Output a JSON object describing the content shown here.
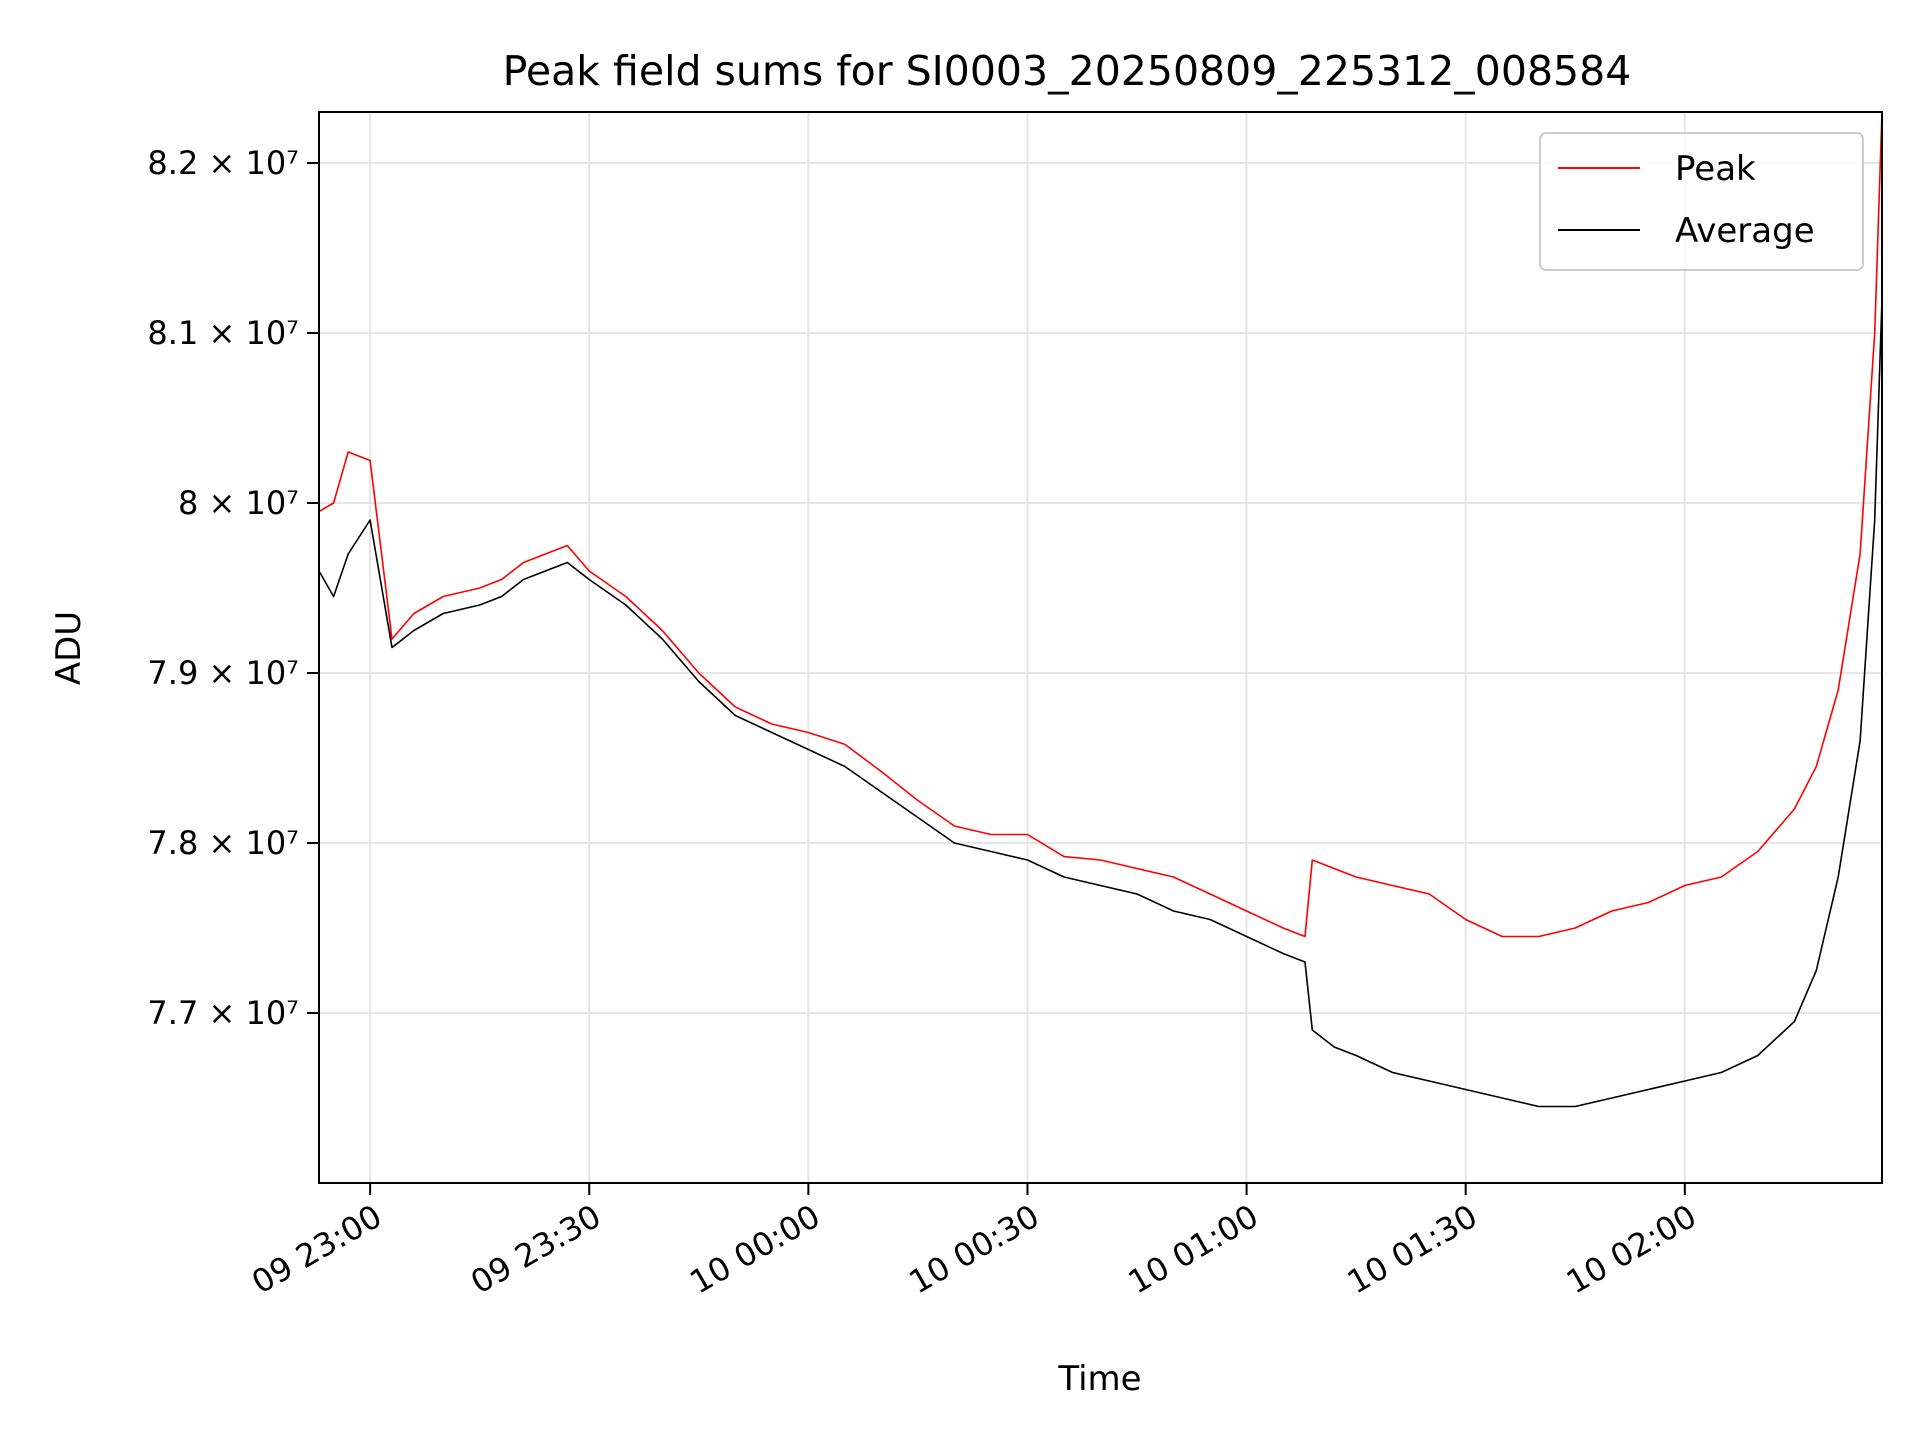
{
  "chart_data": {
    "type": "line",
    "title": "Peak field sums for SI0003_20250809_225312_008584",
    "xlabel": "Time",
    "ylabel": "ADU",
    "xlim": [
      "2025-08-09 22:53:00",
      "2025-08-10 02:27:00"
    ],
    "ylim": [
      76000000,
      82300000
    ],
    "x_ticks": [
      {
        "label": "09 23:00",
        "t": "2025-08-09 23:00:00"
      },
      {
        "label": "09 23:30",
        "t": "2025-08-09 23:30:00"
      },
      {
        "label": "10 00:00",
        "t": "2025-08-10 00:00:00"
      },
      {
        "label": "10 00:30",
        "t": "2025-08-10 00:30:00"
      },
      {
        "label": "10 01:00",
        "t": "2025-08-10 01:00:00"
      },
      {
        "label": "10 01:30",
        "t": "2025-08-10 01:30:00"
      },
      {
        "label": "10 02:00",
        "t": "2025-08-10 02:00:00"
      }
    ],
    "y_ticks": [
      {
        "label": "7.7 × 10⁷",
        "value": 77000000
      },
      {
        "label": "7.8 × 10⁷",
        "value": 78000000
      },
      {
        "label": "7.9 × 10⁷",
        "value": 79000000
      },
      {
        "label": "8 × 10⁷",
        "value": 80000000
      },
      {
        "label": "8.1 × 10⁷",
        "value": 81000000
      },
      {
        "label": "8.2 × 10⁷",
        "value": 82000000
      }
    ],
    "grid": true,
    "legend_position": "top-right",
    "series": [
      {
        "name": "Peak",
        "color": "#ff0000",
        "x": [
          "2025-08-09 22:53:00",
          "2025-08-09 22:55:00",
          "2025-08-09 22:57:00",
          "2025-08-09 23:00:00",
          "2025-08-09 23:03:00",
          "2025-08-09 23:06:00",
          "2025-08-09 23:10:00",
          "2025-08-09 23:15:00",
          "2025-08-09 23:18:00",
          "2025-08-09 23:21:00",
          "2025-08-09 23:24:00",
          "2025-08-09 23:27:00",
          "2025-08-09 23:30:00",
          "2025-08-09 23:35:00",
          "2025-08-09 23:40:00",
          "2025-08-09 23:45:00",
          "2025-08-09 23:50:00",
          "2025-08-09 23:55:00",
          "2025-08-10 00:00:00",
          "2025-08-10 00:05:00",
          "2025-08-10 00:10:00",
          "2025-08-10 00:15:00",
          "2025-08-10 00:20:00",
          "2025-08-10 00:25:00",
          "2025-08-10 00:30:00",
          "2025-08-10 00:35:00",
          "2025-08-10 00:40:00",
          "2025-08-10 00:45:00",
          "2025-08-10 00:50:00",
          "2025-08-10 00:55:00",
          "2025-08-10 01:00:00",
          "2025-08-10 01:05:00",
          "2025-08-10 01:08:00",
          "2025-08-10 01:09:00",
          "2025-08-10 01:12:00",
          "2025-08-10 01:15:00",
          "2025-08-10 01:20:00",
          "2025-08-10 01:25:00",
          "2025-08-10 01:30:00",
          "2025-08-10 01:35:00",
          "2025-08-10 01:40:00",
          "2025-08-10 01:45:00",
          "2025-08-10 01:50:00",
          "2025-08-10 01:55:00",
          "2025-08-10 02:00:00",
          "2025-08-10 02:05:00",
          "2025-08-10 02:10:00",
          "2025-08-10 02:15:00",
          "2025-08-10 02:18:00",
          "2025-08-10 02:21:00",
          "2025-08-10 02:24:00",
          "2025-08-10 02:26:00",
          "2025-08-10 02:27:00"
        ],
        "y": [
          79950000,
          80000000,
          80300000,
          80250000,
          79200000,
          79350000,
          79450000,
          79500000,
          79550000,
          79650000,
          79700000,
          79750000,
          79600000,
          79450000,
          79250000,
          79000000,
          78800000,
          78700000,
          78650000,
          78580000,
          78420000,
          78250000,
          78100000,
          78050000,
          78050000,
          77920000,
          77900000,
          77850000,
          77800000,
          77700000,
          77600000,
          77500000,
          77450000,
          77900000,
          77850000,
          77800000,
          77750000,
          77700000,
          77550000,
          77450000,
          77450000,
          77500000,
          77600000,
          77650000,
          77750000,
          77800000,
          77950000,
          78200000,
          78450000,
          78900000,
          79700000,
          81000000,
          82300000
        ]
      },
      {
        "name": "Average",
        "color": "#000000",
        "x": [
          "2025-08-09 22:53:00",
          "2025-08-09 22:55:00",
          "2025-08-09 22:57:00",
          "2025-08-09 23:00:00",
          "2025-08-09 23:03:00",
          "2025-08-09 23:06:00",
          "2025-08-09 23:10:00",
          "2025-08-09 23:15:00",
          "2025-08-09 23:18:00",
          "2025-08-09 23:21:00",
          "2025-08-09 23:24:00",
          "2025-08-09 23:27:00",
          "2025-08-09 23:30:00",
          "2025-08-09 23:35:00",
          "2025-08-09 23:40:00",
          "2025-08-09 23:45:00",
          "2025-08-09 23:50:00",
          "2025-08-09 23:55:00",
          "2025-08-10 00:00:00",
          "2025-08-10 00:05:00",
          "2025-08-10 00:10:00",
          "2025-08-10 00:15:00",
          "2025-08-10 00:20:00",
          "2025-08-10 00:25:00",
          "2025-08-10 00:30:00",
          "2025-08-10 00:35:00",
          "2025-08-10 00:40:00",
          "2025-08-10 00:45:00",
          "2025-08-10 00:50:00",
          "2025-08-10 00:55:00",
          "2025-08-10 01:00:00",
          "2025-08-10 01:05:00",
          "2025-08-10 01:08:00",
          "2025-08-10 01:09:00",
          "2025-08-10 01:12:00",
          "2025-08-10 01:15:00",
          "2025-08-10 01:20:00",
          "2025-08-10 01:25:00",
          "2025-08-10 01:30:00",
          "2025-08-10 01:35:00",
          "2025-08-10 01:40:00",
          "2025-08-10 01:45:00",
          "2025-08-10 01:50:00",
          "2025-08-10 01:55:00",
          "2025-08-10 02:00:00",
          "2025-08-10 02:05:00",
          "2025-08-10 02:10:00",
          "2025-08-10 02:15:00",
          "2025-08-10 02:18:00",
          "2025-08-10 02:21:00",
          "2025-08-10 02:24:00",
          "2025-08-10 02:26:00",
          "2025-08-10 02:27:00"
        ],
        "y": [
          79600000,
          79450000,
          79700000,
          79900000,
          79150000,
          79250000,
          79350000,
          79400000,
          79450000,
          79550000,
          79600000,
          79650000,
          79550000,
          79400000,
          79200000,
          78950000,
          78750000,
          78650000,
          78550000,
          78450000,
          78300000,
          78150000,
          78000000,
          77950000,
          77900000,
          77800000,
          77750000,
          77700000,
          77600000,
          77550000,
          77450000,
          77350000,
          77300000,
          76900000,
          76800000,
          76750000,
          76650000,
          76600000,
          76550000,
          76500000,
          76450000,
          76450000,
          76500000,
          76550000,
          76600000,
          76650000,
          76750000,
          76950000,
          77250000,
          77800000,
          78600000,
          79900000,
          81200000
        ]
      }
    ]
  }
}
